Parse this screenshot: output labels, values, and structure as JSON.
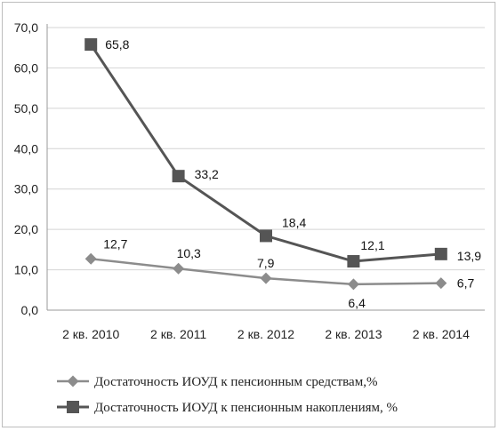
{
  "chart_data": {
    "type": "line",
    "categories": [
      "2 кв. 2010",
      "2 кв. 2011",
      "2 кв. 2012",
      "2 кв. 2013",
      "2 кв. 2014"
    ],
    "ylim": [
      0,
      70
    ],
    "yticks": [
      "0,0",
      "10,0",
      "20,0",
      "30,0",
      "40,0",
      "50,0",
      "60,0",
      "70,0"
    ],
    "grid": true,
    "legend_position": "bottom",
    "series": [
      {
        "name": "Достаточность ИОУД к пенсионным средствам,%",
        "values": [
          12.7,
          10.3,
          7.9,
          6.4,
          6.7
        ],
        "labels": [
          "12,7",
          "10,3",
          "7,9",
          "6,4",
          "6,7"
        ],
        "marker": "diamond",
        "color": "#8c8c8c"
      },
      {
        "name": "Достаточность ИОУД к пенсионным накоплениям, %",
        "values": [
          65.8,
          33.2,
          18.4,
          12.1,
          13.9
        ],
        "labels": [
          "65,8",
          "33,2",
          "18,4",
          "12,1",
          "13,9"
        ],
        "marker": "square",
        "color": "#555555"
      }
    ]
  }
}
